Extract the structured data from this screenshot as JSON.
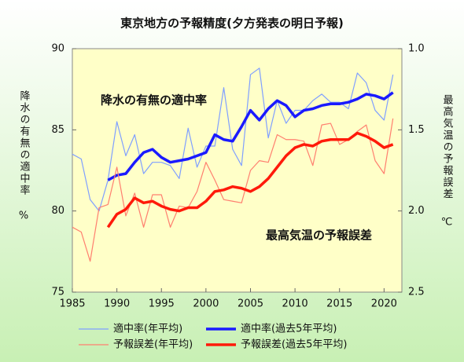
{
  "chart_data": {
    "type": "line",
    "title": "東京地方の予報精度(夕方発表の明日予報)",
    "ylabel": "降水の有無の適中率",
    "yunit": "%",
    "y2label": "最高気温の予報誤差",
    "y2unit": "℃",
    "annotations": [
      "降水の有無の適中率",
      "最高気温の予報誤差"
    ],
    "xlim": [
      1985,
      2022
    ],
    "xticks": [
      1985,
      1990,
      1995,
      2000,
      2005,
      2010,
      2015,
      2020
    ],
    "ylim": [
      75,
      90
    ],
    "yticks": [
      75,
      80,
      85,
      90
    ],
    "y2lim": [
      2.5,
      1.0
    ],
    "y2ticks": [
      {
        "value": 1.0,
        "label": "1.0"
      },
      {
        "value": 1.5,
        "label": "1.5"
      },
      {
        "value": 2.0,
        "label": "2.0"
      },
      {
        "value": 2.5,
        "label": "2.5"
      }
    ],
    "grid": false,
    "series": [
      {
        "name": "適中率(年平均)",
        "color": "#7f9fff",
        "linewidth": 1.2,
        "x": [
          1985,
          1986,
          1987,
          1988,
          1989,
          1990,
          1991,
          1992,
          1993,
          1994,
          1995,
          1996,
          1997,
          1998,
          1999,
          2000,
          2001,
          2002,
          2003,
          2004,
          2005,
          2006,
          2007,
          2008,
          2009,
          2010,
          2011,
          2012,
          2013,
          2014,
          2015,
          2016,
          2017,
          2018,
          2019,
          2020,
          2021
        ],
        "values": [
          83.5,
          83.2,
          80.7,
          80.0,
          81.9,
          85.5,
          83.4,
          84.7,
          82.3,
          83.0,
          83.0,
          82.8,
          82.0,
          85.1,
          82.7,
          84.0,
          84.0,
          87.6,
          83.8,
          82.8,
          88.4,
          88.8,
          84.5,
          86.8,
          85.4,
          86.2,
          86.2,
          86.8,
          87.2,
          86.7,
          86.7,
          86.3,
          88.5,
          87.9,
          86.2,
          85.6,
          88.4
        ]
      },
      {
        "name": "適中率(過去5年平均)",
        "color": "#1a1aff",
        "linewidth": 3.5,
        "x": [
          1989,
          1990,
          1991,
          1992,
          1993,
          1994,
          1995,
          1996,
          1997,
          1998,
          1999,
          2000,
          2001,
          2002,
          2003,
          2004,
          2005,
          2006,
          2007,
          2008,
          2009,
          2010,
          2011,
          2012,
          2013,
          2014,
          2015,
          2016,
          2017,
          2018,
          2019,
          2020,
          2021
        ],
        "values": [
          81.9,
          82.2,
          82.3,
          83.0,
          83.6,
          83.8,
          83.3,
          83.0,
          83.1,
          83.2,
          83.4,
          83.6,
          84.7,
          84.4,
          84.3,
          85.2,
          86.2,
          85.6,
          86.3,
          86.8,
          86.5,
          85.8,
          86.2,
          86.3,
          86.5,
          86.6,
          86.6,
          86.7,
          86.9,
          87.2,
          87.1,
          86.9,
          87.3
        ]
      },
      {
        "name": "予報誤差(年平均)",
        "color": "#ff7f6f",
        "linewidth": 1.2,
        "axis": "y2",
        "x": [
          1985,
          1986,
          1987,
          1988,
          1989,
          1990,
          1991,
          1992,
          1993,
          1994,
          1995,
          1996,
          1997,
          1998,
          1999,
          2000,
          2001,
          2002,
          2003,
          2004,
          2005,
          2006,
          2007,
          2008,
          2009,
          2010,
          2011,
          2012,
          2013,
          2014,
          2015,
          2016,
          2017,
          2018,
          2019,
          2020,
          2021
        ],
        "values": [
          2.1,
          2.13,
          2.31,
          1.98,
          1.96,
          1.73,
          2.03,
          1.89,
          2.1,
          1.9,
          1.9,
          2.1,
          1.97,
          1.98,
          1.88,
          1.7,
          1.81,
          1.93,
          1.94,
          1.95,
          1.75,
          1.69,
          1.7,
          1.53,
          1.56,
          1.56,
          1.57,
          1.72,
          1.47,
          1.46,
          1.59,
          1.56,
          1.51,
          1.47,
          1.69,
          1.77,
          1.43
        ]
      },
      {
        "name": "予報誤差(過去5年平均)",
        "color": "#ff1a0a",
        "linewidth": 3.5,
        "axis": "y2",
        "x": [
          1989,
          1990,
          1991,
          1992,
          1993,
          1994,
          1995,
          1996,
          1997,
          1998,
          1999,
          2000,
          2001,
          2002,
          2003,
          2004,
          2005,
          2006,
          2007,
          2008,
          2009,
          2010,
          2011,
          2012,
          2013,
          2014,
          2015,
          2016,
          2017,
          2018,
          2019,
          2020,
          2021
        ],
        "values": [
          2.1,
          2.02,
          1.99,
          1.92,
          1.95,
          1.94,
          1.97,
          1.99,
          2.0,
          1.98,
          1.98,
          1.94,
          1.88,
          1.87,
          1.85,
          1.86,
          1.88,
          1.85,
          1.8,
          1.73,
          1.66,
          1.61,
          1.59,
          1.6,
          1.57,
          1.56,
          1.56,
          1.56,
          1.52,
          1.54,
          1.57,
          1.61,
          1.59
        ]
      }
    ]
  }
}
